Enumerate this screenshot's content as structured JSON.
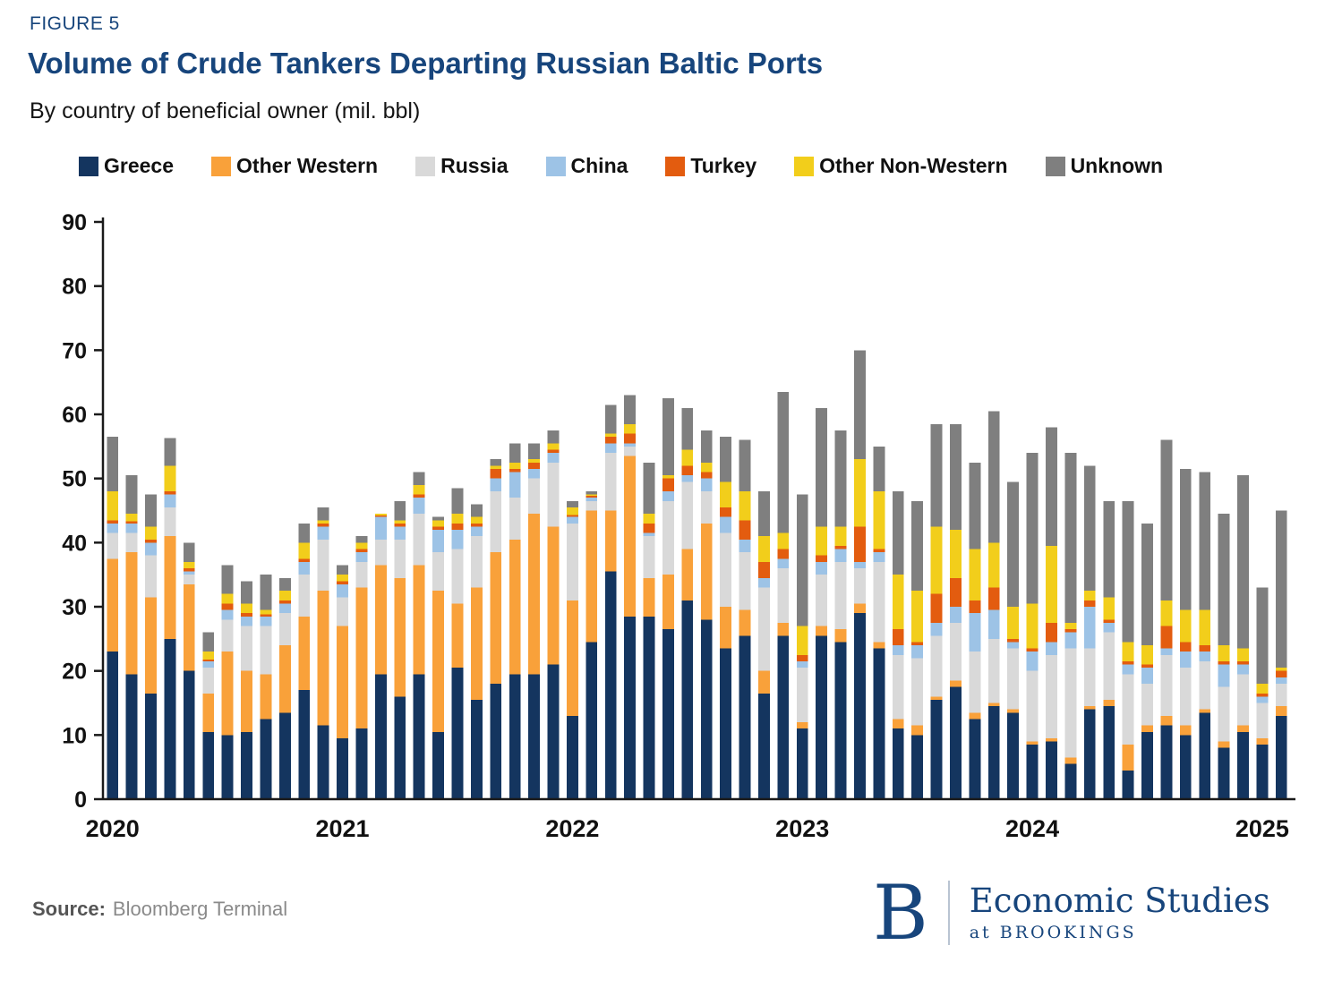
{
  "header": {
    "figure_label": "FIGURE 5",
    "title": "Volume of Crude Tankers Departing Russian Baltic Ports",
    "subtitle": "By country of beneficial owner (mil. bbl)"
  },
  "footer": {
    "source_label": "Source:",
    "source_text": "Bloomberg Terminal",
    "logo_letter": "B",
    "brand_line1": "Economic Studies",
    "brand_line2": "at BROOKINGS"
  },
  "colors": {
    "brand_navy": "#17457C",
    "axis": "#1a1a1a"
  },
  "chart_data": {
    "type": "bar",
    "stacked": true,
    "title": "Volume of Crude Tankers Departing Russian Baltic Ports",
    "subtitle": "By country of beneficial owner (mil. bbl)",
    "xlabel": "",
    "ylabel": "mil. bbl",
    "ylim": [
      0,
      90
    ],
    "ytick_step": 10,
    "grid": false,
    "legend_position": "top",
    "categories": [
      "2020-01",
      "2020-02",
      "2020-03",
      "2020-04",
      "2020-05",
      "2020-06",
      "2020-07",
      "2020-08",
      "2020-09",
      "2020-10",
      "2020-11",
      "2020-12",
      "2021-01",
      "2021-02",
      "2021-03",
      "2021-04",
      "2021-05",
      "2021-06",
      "2021-07",
      "2021-08",
      "2021-09",
      "2021-10",
      "2021-11",
      "2021-12",
      "2022-01",
      "2022-02",
      "2022-03",
      "2022-04",
      "2022-05",
      "2022-06",
      "2022-07",
      "2022-08",
      "2022-09",
      "2022-10",
      "2022-11",
      "2022-12",
      "2023-01",
      "2023-02",
      "2023-03",
      "2023-04",
      "2023-05",
      "2023-06",
      "2023-07",
      "2023-08",
      "2023-09",
      "2023-10",
      "2023-11",
      "2023-12",
      "2024-01",
      "2024-02",
      "2024-03",
      "2024-04",
      "2024-05",
      "2024-06",
      "2024-07",
      "2024-08",
      "2024-09",
      "2024-10",
      "2024-11",
      "2024-12",
      "2025-01",
      "2025-02"
    ],
    "year_ticks": [
      {
        "index": 0,
        "label": "2020"
      },
      {
        "index": 12,
        "label": "2021"
      },
      {
        "index": 24,
        "label": "2022"
      },
      {
        "index": 36,
        "label": "2023"
      },
      {
        "index": 48,
        "label": "2024"
      },
      {
        "index": 60,
        "label": "2025"
      }
    ],
    "series": [
      {
        "name": "Greece",
        "color": "#14355F",
        "values": [
          23,
          19.5,
          16.5,
          25,
          20,
          10.5,
          10,
          10.5,
          12.5,
          13.5,
          17,
          11.5,
          9.5,
          11,
          19.5,
          16,
          19.5,
          10.5,
          20.5,
          15.5,
          18,
          19.5,
          19.5,
          21,
          13,
          24.5,
          35.5,
          28.5,
          28.5,
          26.5,
          31,
          28,
          23.5,
          25.5,
          16.5,
          25.5,
          11,
          25.5,
          24.5,
          29,
          23.5,
          11,
          10,
          15.5,
          17.5,
          12.5,
          14.5,
          13.5,
          8.5,
          9,
          5.5,
          14,
          14.5,
          4.5,
          10.5,
          11.5,
          10,
          13.5,
          8,
          10.5,
          8.5,
          13
        ]
      },
      {
        "name": "Other Western",
        "color": "#F9A13A",
        "values": [
          14.5,
          19,
          15,
          16,
          13.5,
          6,
          13,
          9.5,
          7,
          10.5,
          11.5,
          21,
          17.5,
          22,
          17,
          18.5,
          17,
          22,
          10,
          17.5,
          20.5,
          21,
          25,
          21.5,
          18,
          20.5,
          9.5,
          25,
          6,
          8.5,
          8,
          15,
          6.5,
          4,
          3.5,
          2,
          1,
          1.5,
          2,
          1.5,
          1,
          1.5,
          1.5,
          0.5,
          1,
          1,
          0.5,
          0.5,
          0.5,
          0.5,
          1,
          0.5,
          1,
          4,
          1,
          1.5,
          1.5,
          0.5,
          1,
          1,
          1,
          1.5
        ]
      },
      {
        "name": "Russia",
        "color": "#D9D9D9",
        "values": [
          4,
          3,
          6.5,
          4.5,
          1.5,
          4,
          5,
          7,
          7.5,
          5,
          6.5,
          8,
          4.5,
          4,
          4,
          6,
          8,
          6,
          8.5,
          8,
          9.5,
          6.5,
          5.5,
          10,
          12,
          1.5,
          9,
          1.5,
          6.5,
          11.5,
          10.5,
          5,
          11.5,
          9,
          13,
          8.5,
          8.5,
          8,
          10.5,
          5.5,
          12.5,
          10,
          10.5,
          9.5,
          9,
          9.5,
          10,
          9.5,
          11,
          13,
          17,
          9,
          10.5,
          11,
          6.5,
          9.5,
          9,
          7.5,
          8.5,
          8,
          5.5,
          3.5
        ]
      },
      {
        "name": "China",
        "color": "#9DC3E6",
        "values": [
          1.5,
          1.5,
          2,
          2,
          0.5,
          1,
          1.5,
          1.5,
          1.5,
          1.5,
          2,
          2,
          2,
          1.5,
          3.5,
          2,
          2.5,
          3.5,
          3,
          1.5,
          2,
          4,
          1.5,
          1.5,
          1,
          0.5,
          1.5,
          0.5,
          0.5,
          1.5,
          1,
          2,
          2.5,
          2,
          1.5,
          1.5,
          1,
          2,
          2,
          1,
          1.5,
          1.5,
          2,
          2,
          2.5,
          6,
          4.5,
          1,
          3,
          2,
          2.5,
          6.5,
          1.5,
          1.5,
          2.5,
          1,
          2.5,
          1.5,
          3.5,
          1.5,
          1,
          1
        ]
      },
      {
        "name": "Turkey",
        "color": "#E35C0F",
        "values": [
          0.5,
          0.3,
          0.5,
          0.5,
          0.5,
          0.3,
          1,
          0.5,
          0.3,
          0.5,
          0.5,
          0.5,
          0.5,
          0.5,
          0.2,
          0.5,
          0.5,
          0.5,
          1,
          0.5,
          1.5,
          0.5,
          1,
          0.5,
          0.3,
          0.3,
          1,
          1.5,
          1.5,
          2,
          1.5,
          1,
          1.5,
          3,
          2.5,
          1.5,
          1,
          1,
          0.5,
          5.5,
          0.5,
          2.5,
          0.5,
          4.5,
          4.5,
          2,
          3.5,
          0.5,
          0.5,
          3,
          0.5,
          1,
          0.5,
          0.5,
          0.5,
          3.5,
          1.5,
          1,
          0.5,
          0.5,
          0.5,
          1
        ]
      },
      {
        "name": "Other Non-Western",
        "color": "#F2CE1B",
        "values": [
          4.5,
          1.2,
          2,
          4,
          1,
          1.2,
          1.5,
          1.5,
          0.7,
          1.5,
          2.5,
          0.5,
          1,
          1,
          0.3,
          0.5,
          1.5,
          1,
          1.5,
          1,
          0.5,
          1,
          0.5,
          1,
          1.2,
          0.2,
          0.5,
          1.5,
          1.5,
          0.5,
          2.5,
          1.5,
          4,
          4.5,
          4,
          2.5,
          4.5,
          4.5,
          3,
          10.5,
          9,
          8.5,
          8,
          10.5,
          7.5,
          8,
          7,
          5,
          7,
          12,
          1,
          1.5,
          3.5,
          3,
          3,
          4,
          5,
          5.5,
          2.5,
          2,
          1.5,
          0.5
        ]
      },
      {
        "name": "Unknown",
        "color": "#7F7F7F",
        "values": [
          8.5,
          6,
          5,
          4.3,
          3,
          3,
          4.5,
          3.5,
          5.5,
          2,
          3,
          2,
          1.5,
          1,
          0,
          3,
          2,
          0.5,
          4,
          2,
          1,
          3,
          2.5,
          2,
          1,
          0.5,
          4.5,
          4.5,
          8,
          12,
          6.5,
          5,
          7,
          8,
          7,
          22,
          20.5,
          18.5,
          15,
          17,
          7,
          13,
          14,
          16,
          16.5,
          13.5,
          20.5,
          19.5,
          23.5,
          18.5,
          26.5,
          19.5,
          15,
          22,
          19,
          25,
          22,
          21.5,
          20.5,
          27,
          15,
          24.5
        ]
      }
    ]
  }
}
